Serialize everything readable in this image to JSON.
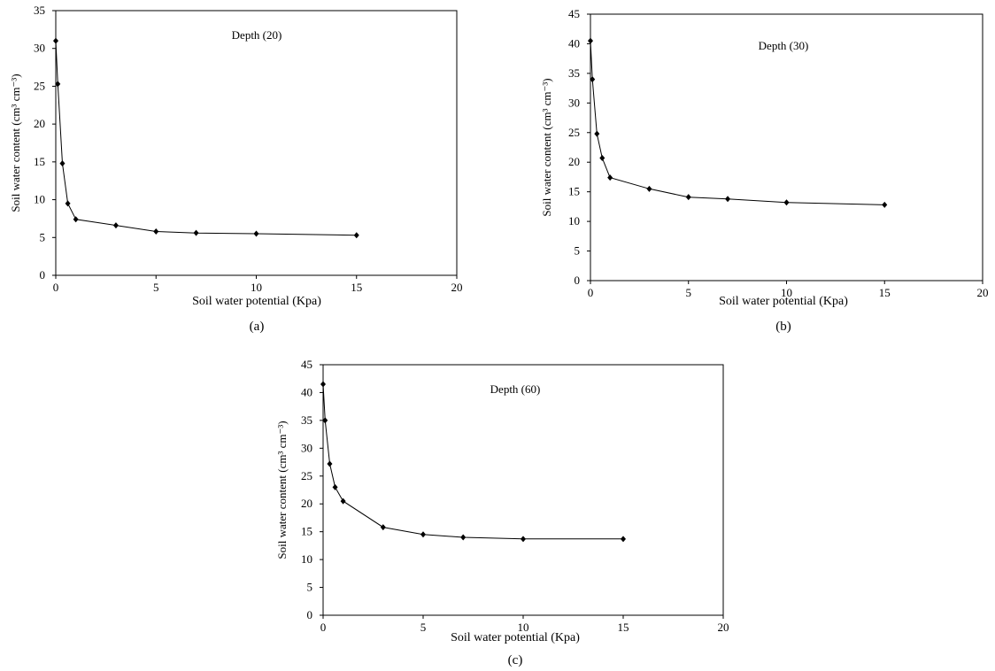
{
  "chart_data": [
    {
      "type": "line",
      "panel": "(a)",
      "annotation": "Depth (20)",
      "xlabel": "Soil water potential (Kpa)",
      "ylabel": "Soil water content (cm³ cm⁻³)",
      "xlim": [
        0,
        20
      ],
      "ylim": [
        0,
        35
      ],
      "xticks": [
        "0",
        "5",
        "10",
        "15",
        "20"
      ],
      "yticks": [
        "0",
        "5",
        "10",
        "15",
        "20",
        "25",
        "30",
        "35"
      ],
      "grid": false,
      "legend": "none",
      "series": [
        {
          "x": [
            0,
            0.1,
            0.33,
            0.6,
            1,
            3,
            5,
            7,
            10,
            15
          ],
          "y": [
            31,
            25.3,
            14.8,
            9.5,
            7.4,
            6.6,
            5.8,
            5.6,
            5.5,
            5.3
          ]
        }
      ]
    },
    {
      "type": "line",
      "panel": "(b)",
      "annotation": "Depth (30)",
      "xlabel": "Soil water potential (Kpa)",
      "ylabel": "Soil water content (cm³ cm⁻³)",
      "xlim": [
        0,
        20
      ],
      "ylim": [
        0,
        45
      ],
      "xticks": [
        "0",
        "5",
        "10",
        "15",
        "20"
      ],
      "yticks": [
        "0",
        "5",
        "10",
        "15",
        "20",
        "25",
        "30",
        "35",
        "40",
        "45"
      ],
      "grid": false,
      "legend": "none",
      "series": [
        {
          "x": [
            0,
            0.1,
            0.33,
            0.6,
            1,
            3,
            5,
            7,
            10,
            15
          ],
          "y": [
            40.5,
            34,
            24.8,
            20.7,
            17.4,
            15.5,
            14.1,
            13.8,
            13.2,
            12.8
          ]
        }
      ]
    },
    {
      "type": "line",
      "panel": "(c)",
      "annotation": "Depth (60)",
      "xlabel": "Soil water potential (Kpa)",
      "ylabel": "Soil water content (cm³ cm⁻³)",
      "xlim": [
        0,
        20
      ],
      "ylim": [
        0,
        45
      ],
      "xticks": [
        "0",
        "5",
        "10",
        "15",
        "20"
      ],
      "yticks": [
        "0",
        "5",
        "10",
        "15",
        "20",
        "25",
        "30",
        "35",
        "40",
        "45"
      ],
      "grid": false,
      "legend": "none",
      "series": [
        {
          "x": [
            0,
            0.1,
            0.33,
            0.6,
            1,
            3,
            5,
            7,
            10,
            15
          ],
          "y": [
            41.5,
            35,
            27.2,
            23,
            20.5,
            15.8,
            14.5,
            14,
            13.7,
            13.7
          ]
        }
      ]
    }
  ]
}
